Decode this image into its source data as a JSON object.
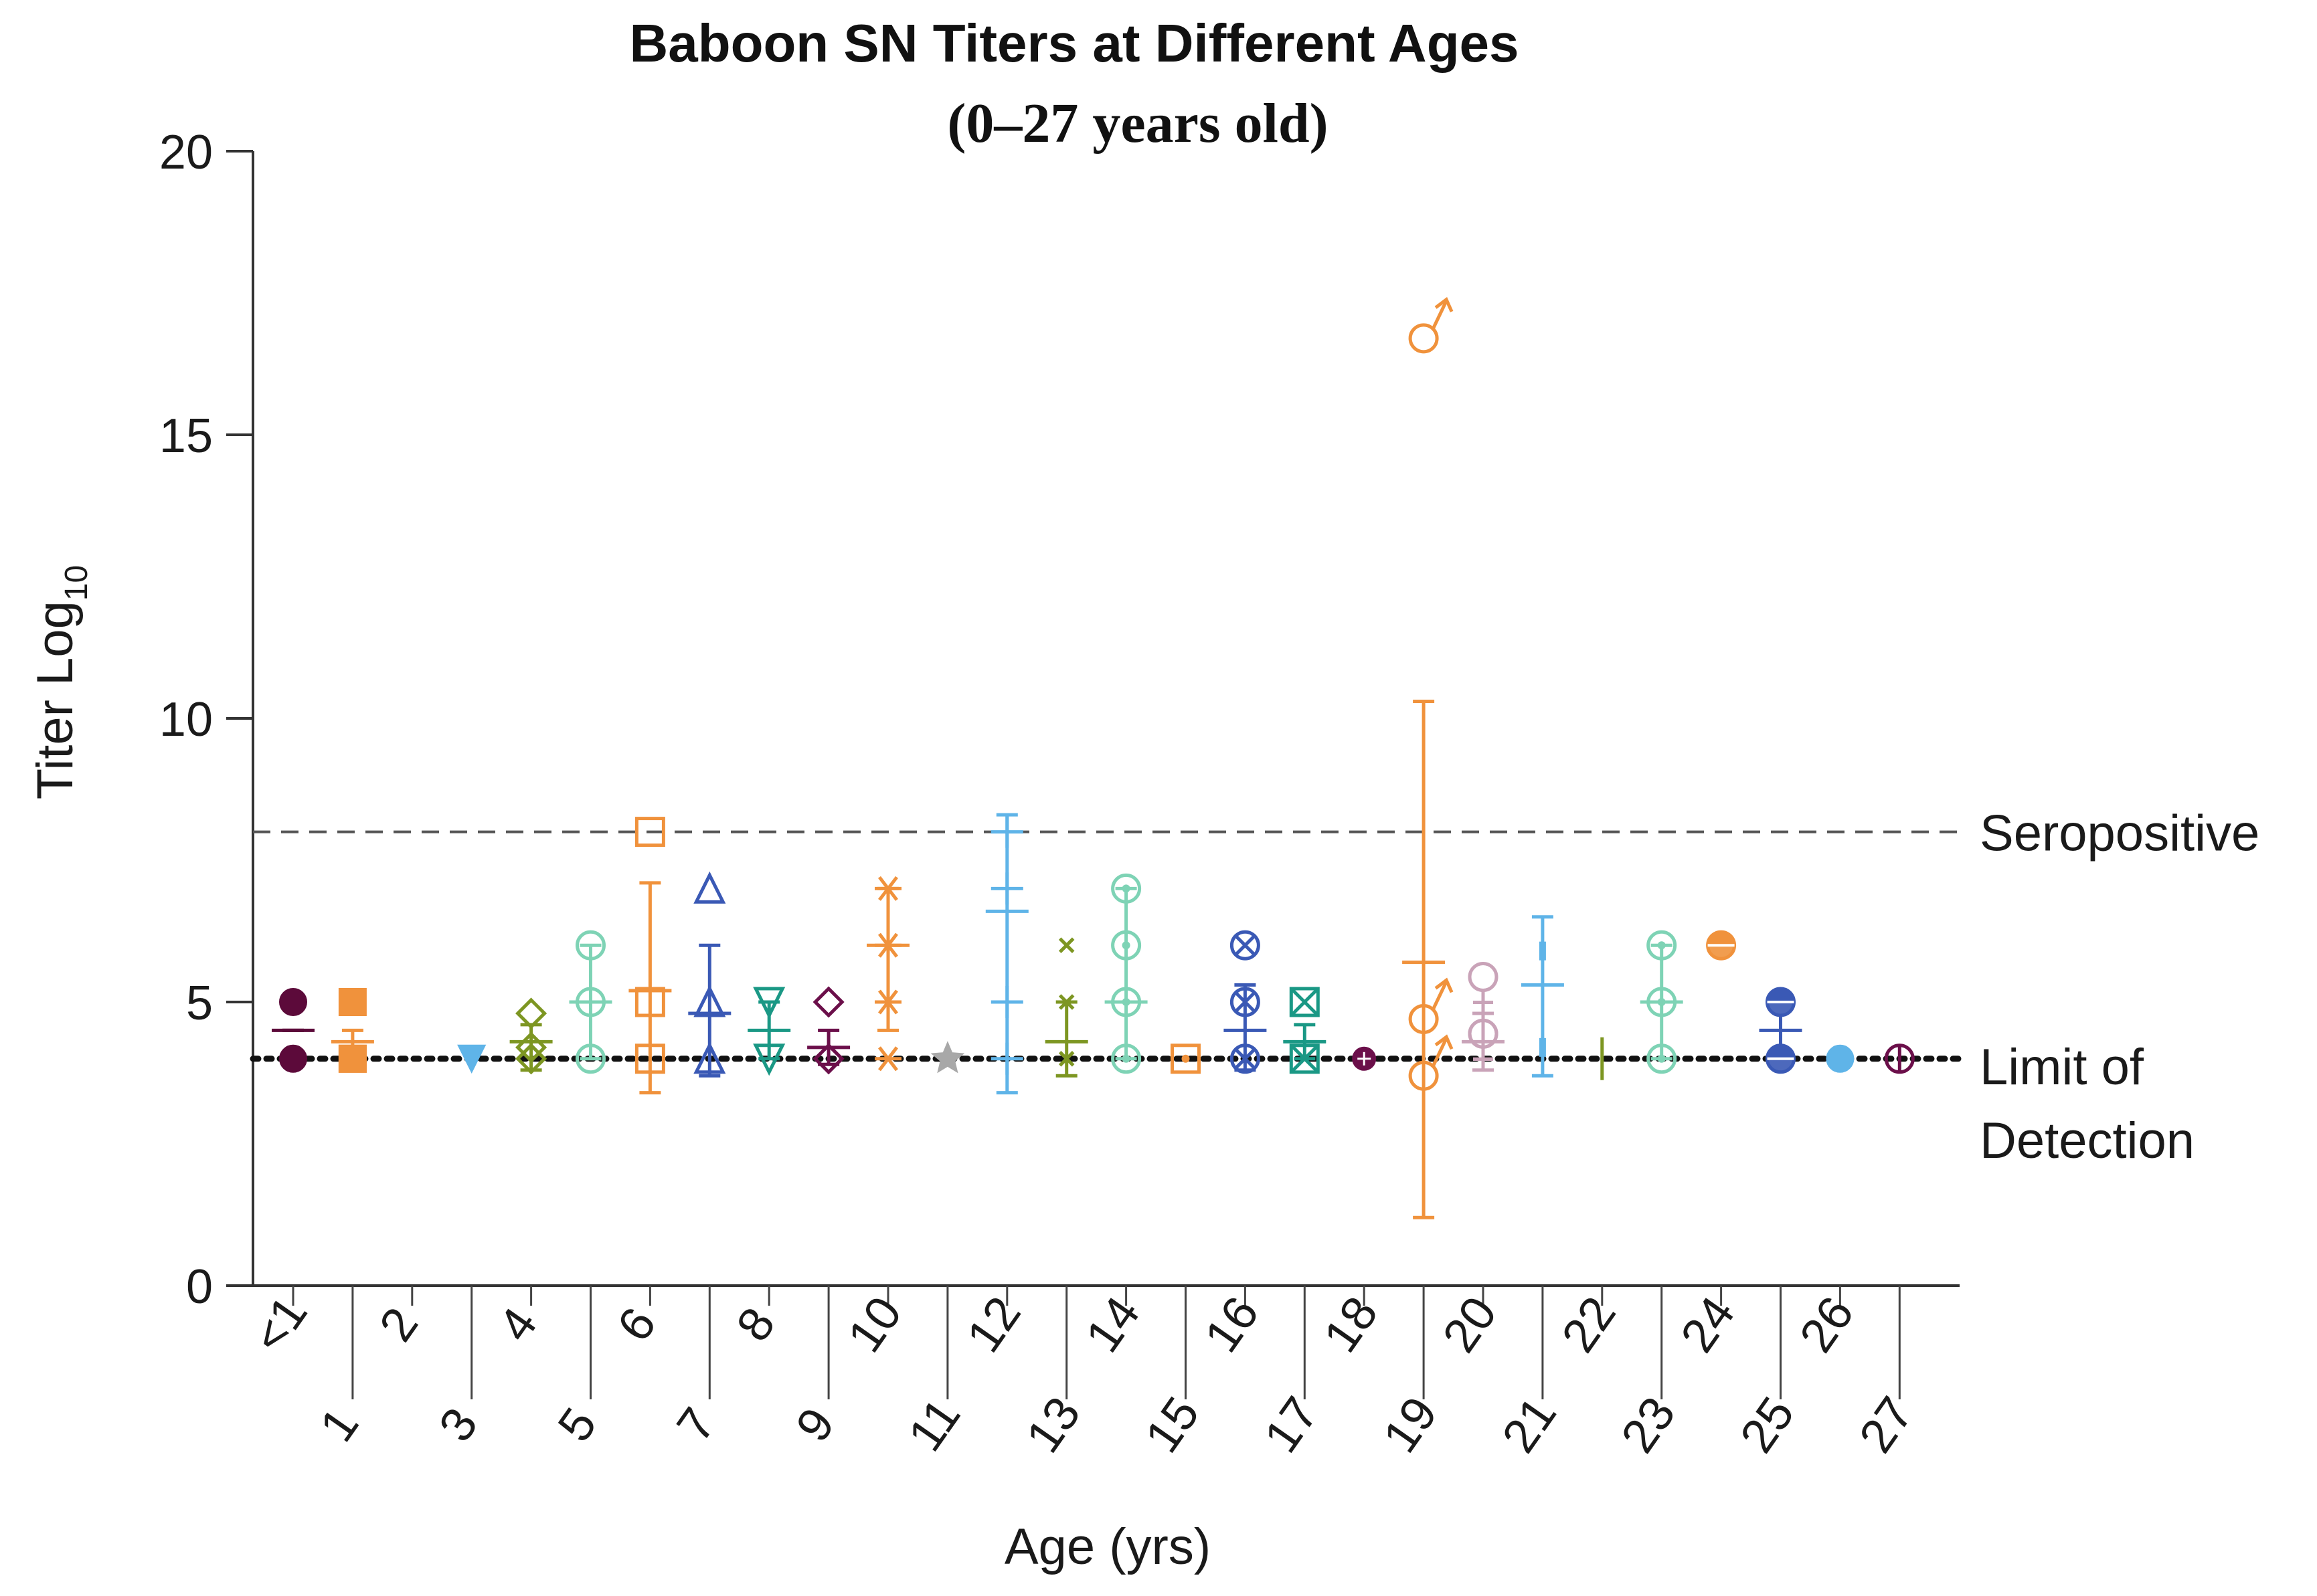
{
  "chart_data": {
    "type": "scatter",
    "title": "Baboon SN Titers at Different Ages",
    "subtitle": "(0–27 years old)",
    "xlabel": "Age (yrs)",
    "ylabel": "Titer Log",
    "ylabel_subscript": "10",
    "ylim": [
      0,
      20
    ],
    "yticks": [
      "0",
      "5",
      "10",
      "15",
      "20"
    ],
    "categories": [
      "<1",
      "1",
      "2",
      "3",
      "4",
      "5",
      "6",
      "7",
      "8",
      "9",
      "10",
      "11",
      "12",
      "13",
      "14",
      "15",
      "16",
      "17",
      "18",
      "19",
      "20",
      "21",
      "22",
      "23",
      "24",
      "25",
      "26",
      "27"
    ],
    "reference_lines": [
      {
        "label": "Seropositive",
        "y": 8,
        "style": "dashed"
      },
      {
        "label_lines": [
          "Limit of",
          "Detection"
        ],
        "y": 4,
        "style": "dotted"
      }
    ],
    "groups": [
      {
        "age": "<1",
        "marker": "circle-filled",
        "color": "#5c0a3a",
        "values": [
          5,
          4
        ],
        "mean": 4.5,
        "err": [
          4.5,
          4.5
        ]
      },
      {
        "age": "1",
        "marker": "square-filled",
        "color": "#f0923c",
        "values": [
          5,
          4,
          4
        ],
        "mean": 4.3,
        "err": [
          4.0,
          4.5
        ]
      },
      {
        "age": "3",
        "marker": "triangle-down-filled",
        "color": "#5fb4e8",
        "values": [
          4
        ],
        "mean": 4.0,
        "err": null
      },
      {
        "age": "4",
        "marker": "diamond-open",
        "color": "#7d9622",
        "values": [
          4.8,
          4.2,
          4.0
        ],
        "mean": 4.3,
        "err": [
          3.8,
          4.6
        ]
      },
      {
        "age": "5",
        "marker": "circle-open",
        "color": "#7ed3b5",
        "values": [
          6,
          5,
          4
        ],
        "mean": 5.0,
        "err": [
          4.0,
          6.0
        ]
      },
      {
        "age": "6",
        "marker": "square-open",
        "color": "#f0923c",
        "values": [
          8,
          5,
          4
        ],
        "mean": 5.2,
        "err": [
          3.4,
          7.1
        ]
      },
      {
        "age": "7",
        "marker": "triangle-up-open",
        "color": "#3a59b5",
        "values": [
          7,
          5,
          4
        ],
        "mean": 4.8,
        "err": [
          3.7,
          6.0
        ]
      },
      {
        "age": "8",
        "marker": "triangle-down-open",
        "color": "#1a9885",
        "values": [
          5,
          4
        ],
        "mean": 4.5,
        "err": [
          4.0,
          5.0
        ]
      },
      {
        "age": "9",
        "marker": "diamond-open",
        "color": "#6b0f4a",
        "values": [
          5,
          4
        ],
        "mean": 4.2,
        "err": [
          3.9,
          4.5
        ]
      },
      {
        "age": "10",
        "marker": "asterisk",
        "color": "#f0923c",
        "values": [
          7,
          6,
          5,
          4
        ],
        "mean": 6.0,
        "err": [
          4.5,
          7.0
        ]
      },
      {
        "age": "11",
        "marker": "star-filled",
        "color": "#a8a8a8",
        "values": [
          4
        ],
        "mean": 4.0,
        "err": null
      },
      {
        "age": "12",
        "marker": "plus",
        "color": "#5fb4e8",
        "values": [
          8,
          7,
          5,
          4
        ],
        "mean": 6.6,
        "err": [
          3.4,
          8.3
        ]
      },
      {
        "age": "13",
        "marker": "x-small",
        "color": "#7d9622",
        "values": [
          6,
          5,
          4
        ],
        "mean": 4.3,
        "err": [
          3.7,
          5.0
        ]
      },
      {
        "age": "14",
        "marker": "circle-dot",
        "color": "#7ed3b5",
        "values": [
          7,
          6,
          5,
          4
        ],
        "mean": 5.0,
        "err": [
          4.0,
          7.0
        ]
      },
      {
        "age": "15",
        "marker": "square-dot",
        "color": "#f0923c",
        "values": [
          4
        ],
        "mean": 4.0,
        "err": null
      },
      {
        "age": "16",
        "marker": "circle-x",
        "color": "#3a59b5",
        "values": [
          6,
          5,
          4
        ],
        "mean": 4.5,
        "err": [
          3.8,
          5.3
        ]
      },
      {
        "age": "17",
        "marker": "square-x",
        "color": "#1a9885",
        "values": [
          5,
          4
        ],
        "mean": 4.3,
        "err": [
          4.0,
          4.6
        ]
      },
      {
        "age": "18",
        "marker": "circle-star",
        "color": "#6b0f4a",
        "values": [
          4
        ],
        "mean": 4.0,
        "err": null
      },
      {
        "age": "19",
        "marker": "male",
        "color": "#f0923c",
        "values": [
          16.7,
          4.7,
          3.7
        ],
        "mean": 5.7,
        "err": [
          1.2,
          10.3
        ]
      },
      {
        "age": "20",
        "marker": "female",
        "color": "#c9a3b8",
        "values": [
          5.3,
          4.3,
          4.3
        ],
        "mean": 4.3,
        "err": [
          3.8,
          4.8
        ]
      },
      {
        "age": "21",
        "marker": "tick",
        "color": "#5fb4e8",
        "values": [
          5.9,
          4.2
        ],
        "mean": 5.3,
        "err": [
          3.7,
          6.5
        ]
      },
      {
        "age": "22",
        "marker": "vline",
        "color": "#7d9622",
        "values": [
          4
        ],
        "mean": 4.0,
        "err": null
      },
      {
        "age": "23",
        "marker": "circle-dot",
        "color": "#7ed3b5",
        "values": [
          6,
          5,
          4
        ],
        "mean": 5.0,
        "err": [
          4.0,
          6.0
        ]
      },
      {
        "age": "24",
        "marker": "circle-half",
        "color": "#f0923c",
        "values": [
          6
        ],
        "mean": 6.0,
        "err": null
      },
      {
        "age": "25",
        "marker": "circle-half",
        "color": "#3a59b5",
        "values": [
          5,
          4
        ],
        "mean": 4.5,
        "err": [
          4.0,
          5.0
        ]
      },
      {
        "age": "26",
        "marker": "circle-filled",
        "color": "#5fb4e8",
        "values": [
          4
        ],
        "mean": 4.0,
        "err": null
      },
      {
        "age": "27",
        "marker": "circle-vline",
        "color": "#6b0f4a",
        "values": [
          4
        ],
        "mean": 4.0,
        "err": null
      }
    ]
  }
}
